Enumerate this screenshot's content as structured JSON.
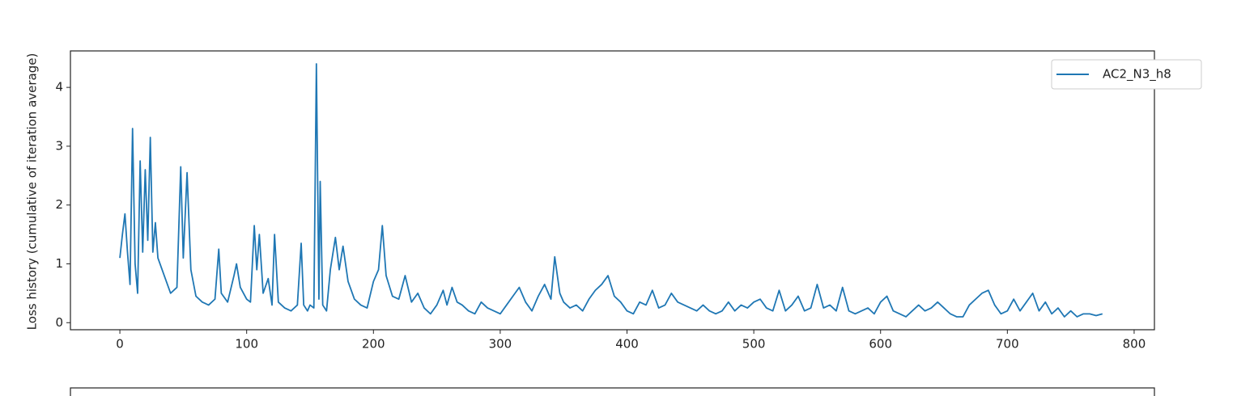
{
  "chart_data": {
    "type": "line",
    "y_label": "Loss history (cumulative of iteration average)",
    "x": [
      0,
      2,
      4,
      6,
      8,
      10,
      12,
      14,
      16,
      18,
      20,
      22,
      24,
      26,
      28,
      30,
      35,
      40,
      45,
      48,
      50,
      53,
      56,
      60,
      65,
      70,
      75,
      78,
      80,
      85,
      90,
      92,
      95,
      100,
      103,
      106,
      108,
      110,
      113,
      117,
      120,
      122,
      125,
      130,
      135,
      140,
      143,
      145,
      148,
      150,
      153,
      155,
      157,
      158,
      160,
      163,
      166,
      170,
      173,
      176,
      180,
      185,
      190,
      195,
      200,
      204,
      207,
      210,
      215,
      220,
      225,
      230,
      235,
      240,
      245,
      250,
      255,
      258,
      262,
      266,
      270,
      275,
      280,
      285,
      290,
      295,
      300,
      305,
      310,
      315,
      320,
      325,
      330,
      335,
      340,
      343,
      347,
      350,
      355,
      360,
      365,
      370,
      375,
      380,
      385,
      390,
      395,
      400,
      405,
      410,
      415,
      420,
      425,
      430,
      435,
      440,
      445,
      450,
      455,
      460,
      465,
      470,
      475,
      480,
      485,
      490,
      495,
      500,
      505,
      510,
      515,
      520,
      525,
      530,
      535,
      540,
      545,
      550,
      555,
      560,
      565,
      570,
      575,
      580,
      585,
      590,
      595,
      600,
      605,
      610,
      615,
      620,
      625,
      630,
      635,
      640,
      645,
      650,
      655,
      660,
      665,
      670,
      675,
      680,
      685,
      690,
      695,
      700,
      705,
      710,
      715,
      720,
      725,
      730,
      735,
      740,
      745,
      750,
      755,
      760,
      765,
      770,
      775
    ],
    "series": [
      {
        "name": "AC2_N3_h8",
        "color": "#1f77b4",
        "values": [
          1.1,
          1.5,
          1.85,
          1.2,
          0.65,
          3.3,
          1.0,
          0.5,
          2.75,
          1.2,
          2.6,
          1.4,
          3.15,
          1.2,
          1.7,
          1.1,
          0.8,
          0.5,
          0.6,
          2.65,
          1.1,
          2.55,
          0.9,
          0.45,
          0.35,
          0.3,
          0.4,
          1.25,
          0.5,
          0.35,
          0.8,
          1.0,
          0.6,
          0.4,
          0.35,
          1.65,
          0.9,
          1.5,
          0.5,
          0.75,
          0.3,
          1.5,
          0.35,
          0.25,
          0.2,
          0.3,
          1.35,
          0.3,
          0.2,
          0.3,
          0.25,
          4.4,
          0.4,
          2.4,
          0.3,
          0.2,
          0.9,
          1.45,
          0.9,
          1.3,
          0.7,
          0.4,
          0.3,
          0.25,
          0.7,
          0.9,
          1.65,
          0.8,
          0.45,
          0.4,
          0.8,
          0.35,
          0.5,
          0.25,
          0.15,
          0.3,
          0.55,
          0.3,
          0.6,
          0.35,
          0.3,
          0.2,
          0.15,
          0.35,
          0.25,
          0.2,
          0.15,
          0.3,
          0.45,
          0.6,
          0.35,
          0.2,
          0.45,
          0.65,
          0.4,
          1.12,
          0.5,
          0.35,
          0.25,
          0.3,
          0.2,
          0.4,
          0.55,
          0.65,
          0.8,
          0.45,
          0.35,
          0.2,
          0.15,
          0.35,
          0.3,
          0.55,
          0.25,
          0.3,
          0.5,
          0.35,
          0.3,
          0.25,
          0.2,
          0.3,
          0.2,
          0.15,
          0.2,
          0.35,
          0.2,
          0.3,
          0.25,
          0.35,
          0.4,
          0.25,
          0.2,
          0.55,
          0.2,
          0.3,
          0.45,
          0.2,
          0.25,
          0.65,
          0.25,
          0.3,
          0.2,
          0.6,
          0.2,
          0.15,
          0.2,
          0.25,
          0.15,
          0.35,
          0.45,
          0.2,
          0.15,
          0.1,
          0.2,
          0.3,
          0.2,
          0.25,
          0.35,
          0.25,
          0.15,
          0.1,
          0.1,
          0.3,
          0.4,
          0.5,
          0.55,
          0.3,
          0.15,
          0.2,
          0.4,
          0.2,
          0.35,
          0.5,
          0.2,
          0.35,
          0.15,
          0.25,
          0.1,
          0.2,
          0.1,
          0.15,
          0.15,
          0.12,
          0.15
        ]
      }
    ],
    "xlim": [
      -39,
      816
    ],
    "xticks": [
      0,
      100,
      200,
      300,
      400,
      500,
      600,
      700,
      800
    ],
    "ylim": [
      -0.12,
      4.62
    ],
    "yticks": [
      0,
      1,
      2,
      3,
      4
    ],
    "legend": "upper right"
  }
}
